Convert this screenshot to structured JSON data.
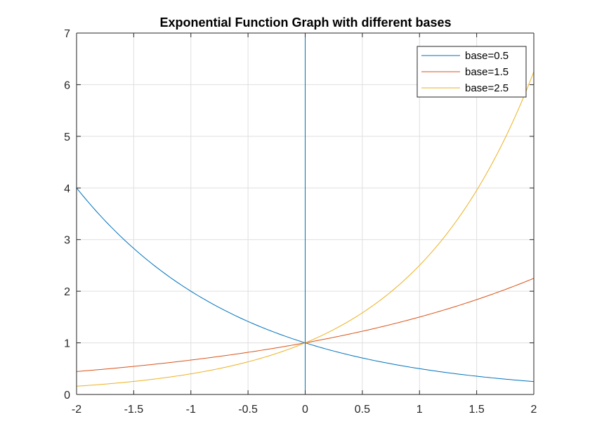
{
  "chart_data": {
    "type": "line",
    "title": "Exponential Function Graph with different bases",
    "xlabel": "",
    "ylabel": "",
    "xlim": [
      -2,
      2
    ],
    "ylim": [
      0,
      7
    ],
    "xticks": [
      "-2",
      "-1.5",
      "-1",
      "-0.5",
      "0",
      "0.5",
      "1",
      "1.5",
      "2"
    ],
    "yticks": [
      "0",
      "1",
      "2",
      "3",
      "4",
      "5",
      "6",
      "7"
    ],
    "grid": true,
    "legend_position": "top-right",
    "series": [
      {
        "name": "base=0.5",
        "color": "#0072BD",
        "x": [
          -2,
          -1.75,
          -1.5,
          -1.25,
          -1,
          -0.75,
          -0.5,
          -0.25,
          0,
          0.25,
          0.5,
          0.75,
          1,
          1.25,
          1.5,
          1.75,
          2
        ],
        "y": [
          4,
          3.364,
          2.828,
          2.378,
          2,
          1.682,
          1.414,
          1.189,
          1,
          0.841,
          0.707,
          0.595,
          0.5,
          0.42,
          0.354,
          0.297,
          0.25
        ]
      },
      {
        "name": "base=1.5",
        "color": "#D95319",
        "x": [
          -2,
          -1.75,
          -1.5,
          -1.25,
          -1,
          -0.75,
          -0.5,
          -0.25,
          0,
          0.25,
          0.5,
          0.75,
          1,
          1.25,
          1.5,
          1.75,
          2
        ],
        "y": [
          0.444,
          0.492,
          0.544,
          0.603,
          0.667,
          0.738,
          0.816,
          0.904,
          1,
          1.107,
          1.225,
          1.355,
          1.5,
          1.66,
          1.837,
          2.033,
          2.25
        ]
      },
      {
        "name": "base=2.5",
        "color": "#EDB120",
        "x": [
          -2,
          -1.75,
          -1.5,
          -1.25,
          -1,
          -0.75,
          -0.5,
          -0.25,
          0,
          0.25,
          0.5,
          0.75,
          1,
          1.25,
          1.5,
          1.75,
          2
        ],
        "y": [
          0.16,
          0.201,
          0.253,
          0.318,
          0.4,
          0.503,
          0.632,
          0.795,
          1,
          1.257,
          1.581,
          1.988,
          2.5,
          3.144,
          3.953,
          4.97,
          6.25
        ]
      }
    ],
    "vertical_line": {
      "x": 0,
      "color": "#0072BD"
    }
  }
}
